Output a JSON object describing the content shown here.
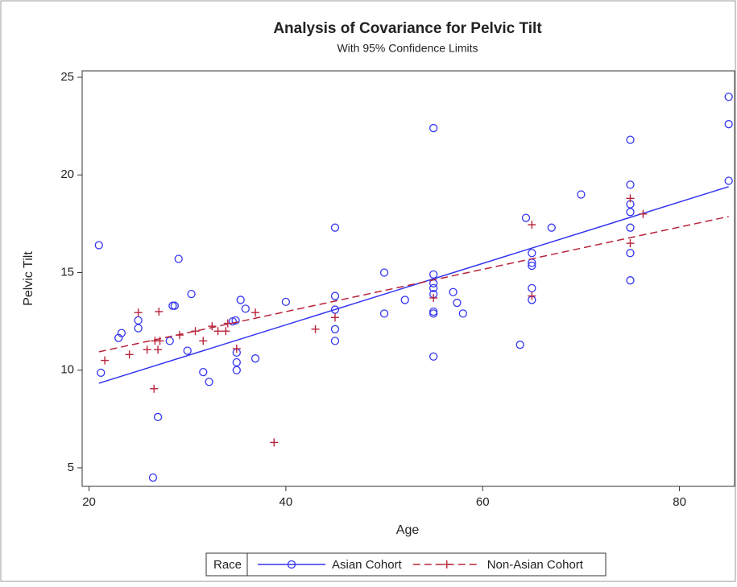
{
  "chart_data": {
    "type": "scatter",
    "title": "Analysis of Covariance for Pelvic Tilt",
    "subtitle": "With 95% Confidence Limits",
    "x_label": "Age",
    "y_label": "Pelvic Tilt",
    "legend_title": "Race",
    "xlim": [
      19.3,
      85.6
    ],
    "ylim": [
      4.05,
      25.33
    ],
    "xticks": [
      20,
      40,
      60,
      80
    ],
    "yticks": [
      5,
      10,
      15,
      20,
      25
    ],
    "series": [
      {
        "name": "Asian Cohort",
        "color": "#3535f0",
        "marker": "circle",
        "dashed": false,
        "x": [
          21,
          21.2,
          23,
          23.3,
          25,
          25,
          26.5,
          27,
          28.2,
          28.5,
          28.7,
          29.1,
          30,
          30.4,
          31.6,
          32.2,
          34.6,
          34.9,
          35,
          35,
          35,
          35.4,
          35.9,
          36.9,
          40,
          45,
          45,
          45,
          45,
          45,
          50,
          50,
          52.1,
          55,
          55,
          55,
          55,
          55,
          55,
          55,
          55,
          57,
          57.4,
          58,
          63.8,
          64.4,
          65,
          65,
          65,
          65,
          65,
          67,
          70,
          75,
          75,
          75,
          75,
          75,
          75,
          75,
          85,
          85,
          85
        ],
        "values": [
          16.4,
          9.87,
          11.65,
          11.9,
          12.55,
          12.15,
          4.5,
          7.6,
          11.5,
          13.3,
          13.3,
          15.7,
          11,
          13.9,
          9.9,
          9.4,
          12.5,
          12.55,
          10.9,
          10.4,
          10,
          13.6,
          13.15,
          10.6,
          13.5,
          17.3,
          13.8,
          13.1,
          12.1,
          11.5,
          15,
          12.9,
          13.6,
          22.4,
          14.9,
          14.45,
          14.2,
          13.9,
          13,
          12.9,
          10.7,
          14,
          13.45,
          12.9,
          11.3,
          17.8,
          16,
          15.5,
          15.35,
          14.2,
          13.6,
          17.3,
          19,
          21.8,
          19.5,
          18.5,
          18.1,
          17.3,
          16,
          14.6,
          24,
          22.6,
          19.7
        ],
        "fit": {
          "x": [
            21,
            85
          ],
          "values": [
            9.33,
            19.4
          ]
        }
      },
      {
        "name": "Non-Asian Cohort",
        "color": "#b8243a",
        "marker": "plus",
        "dashed": true,
        "x": [
          21.6,
          24.1,
          25,
          25.9,
          26.7,
          26.6,
          27.1,
          27,
          27.2,
          29.2,
          30.8,
          31.6,
          32.5,
          33.1,
          33.9,
          34.1,
          35,
          36.9,
          38.8,
          43,
          45,
          55,
          65,
          65,
          75,
          75,
          76.3
        ],
        "values": [
          10.5,
          10.8,
          12.95,
          11.05,
          11.5,
          9.05,
          13,
          11.05,
          11.5,
          11.8,
          12,
          11.5,
          12.25,
          12,
          12,
          12.4,
          11.1,
          12.95,
          6.3,
          12.1,
          12.7,
          13.7,
          17.45,
          13.8,
          18.8,
          16.5,
          18
        ],
        "fit": {
          "x": [
            21,
            85
          ],
          "values": [
            10.94,
            17.87
          ]
        }
      }
    ]
  }
}
